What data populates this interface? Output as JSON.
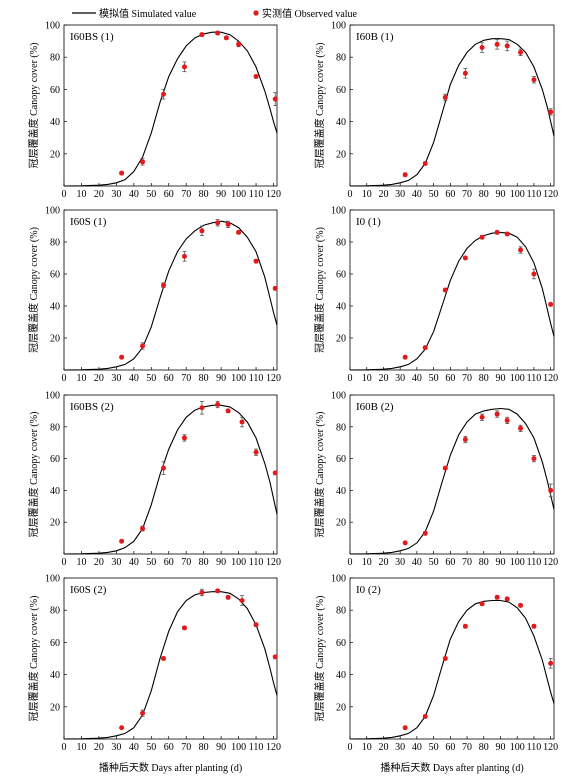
{
  "legend": {
    "simulated_label": "模拟值 Simulated value",
    "observed_label": "实测值 Observed value"
  },
  "axes": {
    "ylabel": "冠层覆盖度 Canopy cover (%)",
    "xlabel": "播种后天数 Days after planting (d)"
  },
  "colors": {
    "simulated": "#000000",
    "observed": "#e31a1c",
    "error_bar": "#555555"
  },
  "chart_data": [
    {
      "type": "line",
      "panel_label": "I60BS (1)",
      "xlim": [
        0,
        122
      ],
      "ylim": [
        0,
        100
      ],
      "xticks": [
        0,
        10,
        20,
        30,
        40,
        50,
        60,
        70,
        80,
        90,
        100,
        110,
        120
      ],
      "yticks": [
        20,
        40,
        60,
        80,
        100
      ],
      "simulated": {
        "x": [
          0,
          10,
          20,
          25,
          30,
          35,
          40,
          45,
          50,
          55,
          60,
          65,
          70,
          75,
          80,
          85,
          90,
          95,
          100,
          105,
          110,
          115,
          118,
          120,
          122
        ],
        "y": [
          0,
          0.1,
          0.5,
          1,
          2,
          4,
          9,
          18,
          33,
          52,
          68,
          79,
          87,
          92,
          94.5,
          95.5,
          95.5,
          94,
          90,
          84,
          74,
          59,
          48,
          40,
          33
        ]
      },
      "observed": {
        "x": [
          33,
          45,
          57,
          69,
          79,
          88,
          93,
          100,
          110,
          121
        ],
        "y": [
          8,
          15,
          57,
          74,
          94,
          95,
          92,
          88,
          68,
          54
        ],
        "err": [
          1,
          2,
          3,
          3,
          1,
          1,
          1,
          1.5,
          1,
          4
        ]
      }
    },
    {
      "type": "line",
      "panel_label": "I60B (1)",
      "xlim": [
        0,
        122
      ],
      "ylim": [
        0,
        100
      ],
      "xticks": [
        0,
        10,
        20,
        30,
        40,
        50,
        60,
        70,
        80,
        90,
        100,
        110,
        120
      ],
      "yticks": [
        20,
        40,
        60,
        80,
        100
      ],
      "simulated": {
        "x": [
          0,
          10,
          20,
          25,
          30,
          35,
          40,
          45,
          50,
          55,
          60,
          65,
          70,
          75,
          80,
          85,
          90,
          95,
          100,
          105,
          110,
          115,
          118,
          120,
          122
        ],
        "y": [
          0,
          0.1,
          0.5,
          1,
          2,
          3.5,
          7,
          14,
          27,
          45,
          63,
          75,
          83,
          88,
          90.5,
          91.5,
          91.5,
          91,
          88,
          83,
          74,
          60,
          49,
          40,
          31
        ]
      },
      "observed": {
        "x": [
          33,
          45,
          57,
          69,
          79,
          88,
          94,
          102,
          110,
          120
        ],
        "y": [
          7,
          14,
          55,
          70,
          86,
          88,
          87,
          83,
          66,
          46
        ],
        "err": [
          1,
          1,
          2,
          3,
          3,
          3,
          3,
          2,
          2,
          2
        ]
      }
    },
    {
      "type": "line",
      "panel_label": "I60S (1)",
      "xlim": [
        0,
        122
      ],
      "ylim": [
        0,
        100
      ],
      "xticks": [
        0,
        10,
        20,
        30,
        40,
        50,
        60,
        70,
        80,
        90,
        100,
        110,
        120
      ],
      "yticks": [
        20,
        40,
        60,
        80,
        100
      ],
      "simulated": {
        "x": [
          0,
          10,
          20,
          25,
          30,
          35,
          40,
          45,
          50,
          55,
          60,
          65,
          70,
          75,
          80,
          85,
          90,
          95,
          100,
          105,
          110,
          115,
          118,
          120,
          122
        ],
        "y": [
          0,
          0.1,
          0.5,
          1,
          2,
          3.5,
          7,
          14,
          27,
          45,
          62,
          74,
          82,
          87,
          90.5,
          92,
          93,
          92,
          89,
          83,
          74,
          58,
          45,
          36,
          28
        ]
      },
      "observed": {
        "x": [
          33,
          45,
          57,
          69,
          79,
          88,
          94,
          100,
          110,
          121
        ],
        "y": [
          8,
          15,
          53,
          71,
          87,
          92,
          91,
          86,
          68,
          51
        ],
        "err": [
          0.5,
          2,
          1.5,
          3,
          3,
          2,
          2,
          1,
          1,
          1
        ]
      }
    },
    {
      "type": "line",
      "panel_label": "I0 (1)",
      "xlim": [
        0,
        122
      ],
      "ylim": [
        0,
        100
      ],
      "xticks": [
        0,
        10,
        20,
        30,
        40,
        50,
        60,
        70,
        80,
        90,
        100,
        110,
        120
      ],
      "yticks": [
        20,
        40,
        60,
        80,
        100
      ],
      "simulated": {
        "x": [
          0,
          10,
          20,
          25,
          30,
          35,
          40,
          45,
          50,
          55,
          60,
          65,
          70,
          75,
          80,
          85,
          90,
          95,
          100,
          105,
          110,
          115,
          118,
          120,
          122
        ],
        "y": [
          0,
          0.1,
          0.5,
          1,
          2,
          3.5,
          7,
          13,
          24,
          40,
          56,
          68,
          76,
          81,
          84,
          85.5,
          86,
          85.5,
          83,
          77,
          67,
          51,
          38,
          29,
          21
        ]
      },
      "observed": {
        "x": [
          33,
          45,
          57,
          69,
          79,
          88,
          94,
          102,
          110,
          120
        ],
        "y": [
          8,
          14,
          50,
          70,
          83,
          86,
          85,
          75,
          60,
          41
        ],
        "err": [
          0.5,
          1,
          1,
          1,
          1,
          1,
          1,
          2,
          3,
          1
        ]
      }
    },
    {
      "type": "line",
      "panel_label": "I60BS (2)",
      "xlim": [
        0,
        122
      ],
      "ylim": [
        0,
        100
      ],
      "xticks": [
        0,
        10,
        20,
        30,
        40,
        50,
        60,
        70,
        80,
        90,
        100,
        110,
        120
      ],
      "yticks": [
        20,
        40,
        60,
        80,
        100
      ],
      "simulated": {
        "x": [
          0,
          10,
          20,
          25,
          30,
          35,
          40,
          45,
          50,
          55,
          60,
          65,
          70,
          75,
          80,
          85,
          90,
          95,
          100,
          105,
          110,
          115,
          118,
          120,
          122
        ],
        "y": [
          0,
          0.1,
          0.5,
          1,
          2,
          4,
          8,
          16,
          31,
          50,
          66,
          78,
          86,
          90.5,
          92.5,
          93.5,
          93.5,
          92.5,
          89,
          83,
          73,
          57,
          45,
          35,
          25
        ]
      },
      "observed": {
        "x": [
          33,
          45,
          57,
          69,
          79,
          88,
          94,
          102,
          110,
          121
        ],
        "y": [
          8,
          16,
          54,
          73,
          92,
          94,
          90,
          83,
          64,
          51
        ],
        "err": [
          0.5,
          1.5,
          4,
          2,
          4,
          2,
          1,
          3,
          2,
          1
        ]
      }
    },
    {
      "type": "line",
      "panel_label": "I60B (2)",
      "xlim": [
        0,
        122
      ],
      "ylim": [
        0,
        100
      ],
      "xticks": [
        0,
        10,
        20,
        30,
        40,
        50,
        60,
        70,
        80,
        90,
        100,
        110,
        120
      ],
      "yticks": [
        20,
        40,
        60,
        80,
        100
      ],
      "simulated": {
        "x": [
          0,
          10,
          20,
          25,
          30,
          35,
          40,
          45,
          50,
          55,
          60,
          65,
          70,
          75,
          80,
          85,
          90,
          95,
          100,
          105,
          110,
          115,
          118,
          120,
          122
        ],
        "y": [
          0,
          0.1,
          0.5,
          1,
          2,
          3.5,
          7,
          14,
          27,
          45,
          62,
          75,
          83,
          88,
          90,
          91,
          91.5,
          91,
          88,
          82,
          73,
          58,
          46,
          37,
          28
        ]
      },
      "observed": {
        "x": [
          33,
          45,
          57,
          69,
          79,
          88,
          94,
          102,
          110,
          120
        ],
        "y": [
          7,
          13,
          54,
          72,
          86,
          88,
          84,
          79,
          60,
          40
        ],
        "err": [
          0.5,
          1,
          1,
          2,
          2,
          2,
          2,
          2,
          2,
          4
        ]
      }
    },
    {
      "type": "line",
      "panel_label": "I60S (2)",
      "xlim": [
        0,
        122
      ],
      "ylim": [
        0,
        100
      ],
      "xticks": [
        0,
        10,
        20,
        30,
        40,
        50,
        60,
        70,
        80,
        90,
        100,
        110,
        120
      ],
      "yticks": [
        20,
        40,
        60,
        80,
        100
      ],
      "simulated": {
        "x": [
          0,
          10,
          20,
          25,
          30,
          35,
          40,
          45,
          50,
          55,
          60,
          65,
          70,
          75,
          80,
          85,
          90,
          95,
          100,
          105,
          110,
          115,
          118,
          120,
          122
        ],
        "y": [
          0,
          0.1,
          0.5,
          1,
          2,
          3.5,
          7,
          15,
          30,
          50,
          67,
          79,
          86,
          89.5,
          91,
          91.5,
          91.5,
          90.5,
          87,
          81,
          71,
          56,
          44,
          35,
          27
        ]
      },
      "observed": {
        "x": [
          33,
          45,
          57,
          69,
          79,
          88,
          94,
          102,
          110,
          121
        ],
        "y": [
          7,
          16,
          50,
          69,
          91,
          92,
          88,
          86,
          71,
          51
        ],
        "err": [
          0.5,
          2,
          1,
          1,
          2,
          1,
          1,
          3,
          1,
          1
        ]
      }
    },
    {
      "type": "line",
      "panel_label": "I0 (2)",
      "xlim": [
        0,
        122
      ],
      "ylim": [
        0,
        100
      ],
      "xticks": [
        0,
        10,
        20,
        30,
        40,
        50,
        60,
        70,
        80,
        90,
        100,
        110,
        120
      ],
      "yticks": [
        20,
        40,
        60,
        80,
        100
      ],
      "simulated": {
        "x": [
          0,
          10,
          20,
          25,
          30,
          35,
          40,
          45,
          50,
          55,
          60,
          65,
          70,
          75,
          80,
          85,
          90,
          95,
          100,
          105,
          110,
          115,
          118,
          120,
          122
        ],
        "y": [
          0,
          0.1,
          0.5,
          1,
          2,
          3.5,
          7,
          14,
          27,
          45,
          62,
          73,
          80,
          84,
          85.5,
          86,
          86,
          85,
          81.5,
          75,
          64,
          49,
          37,
          29,
          22
        ]
      },
      "observed": {
        "x": [
          33,
          45,
          57,
          69,
          79,
          88,
          94,
          102,
          110,
          120
        ],
        "y": [
          7,
          14,
          50,
          70,
          84,
          88,
          87,
          83,
          70,
          47
        ],
        "err": [
          0.5,
          1,
          1,
          1,
          1,
          1,
          1,
          1,
          1,
          3
        ]
      }
    }
  ]
}
